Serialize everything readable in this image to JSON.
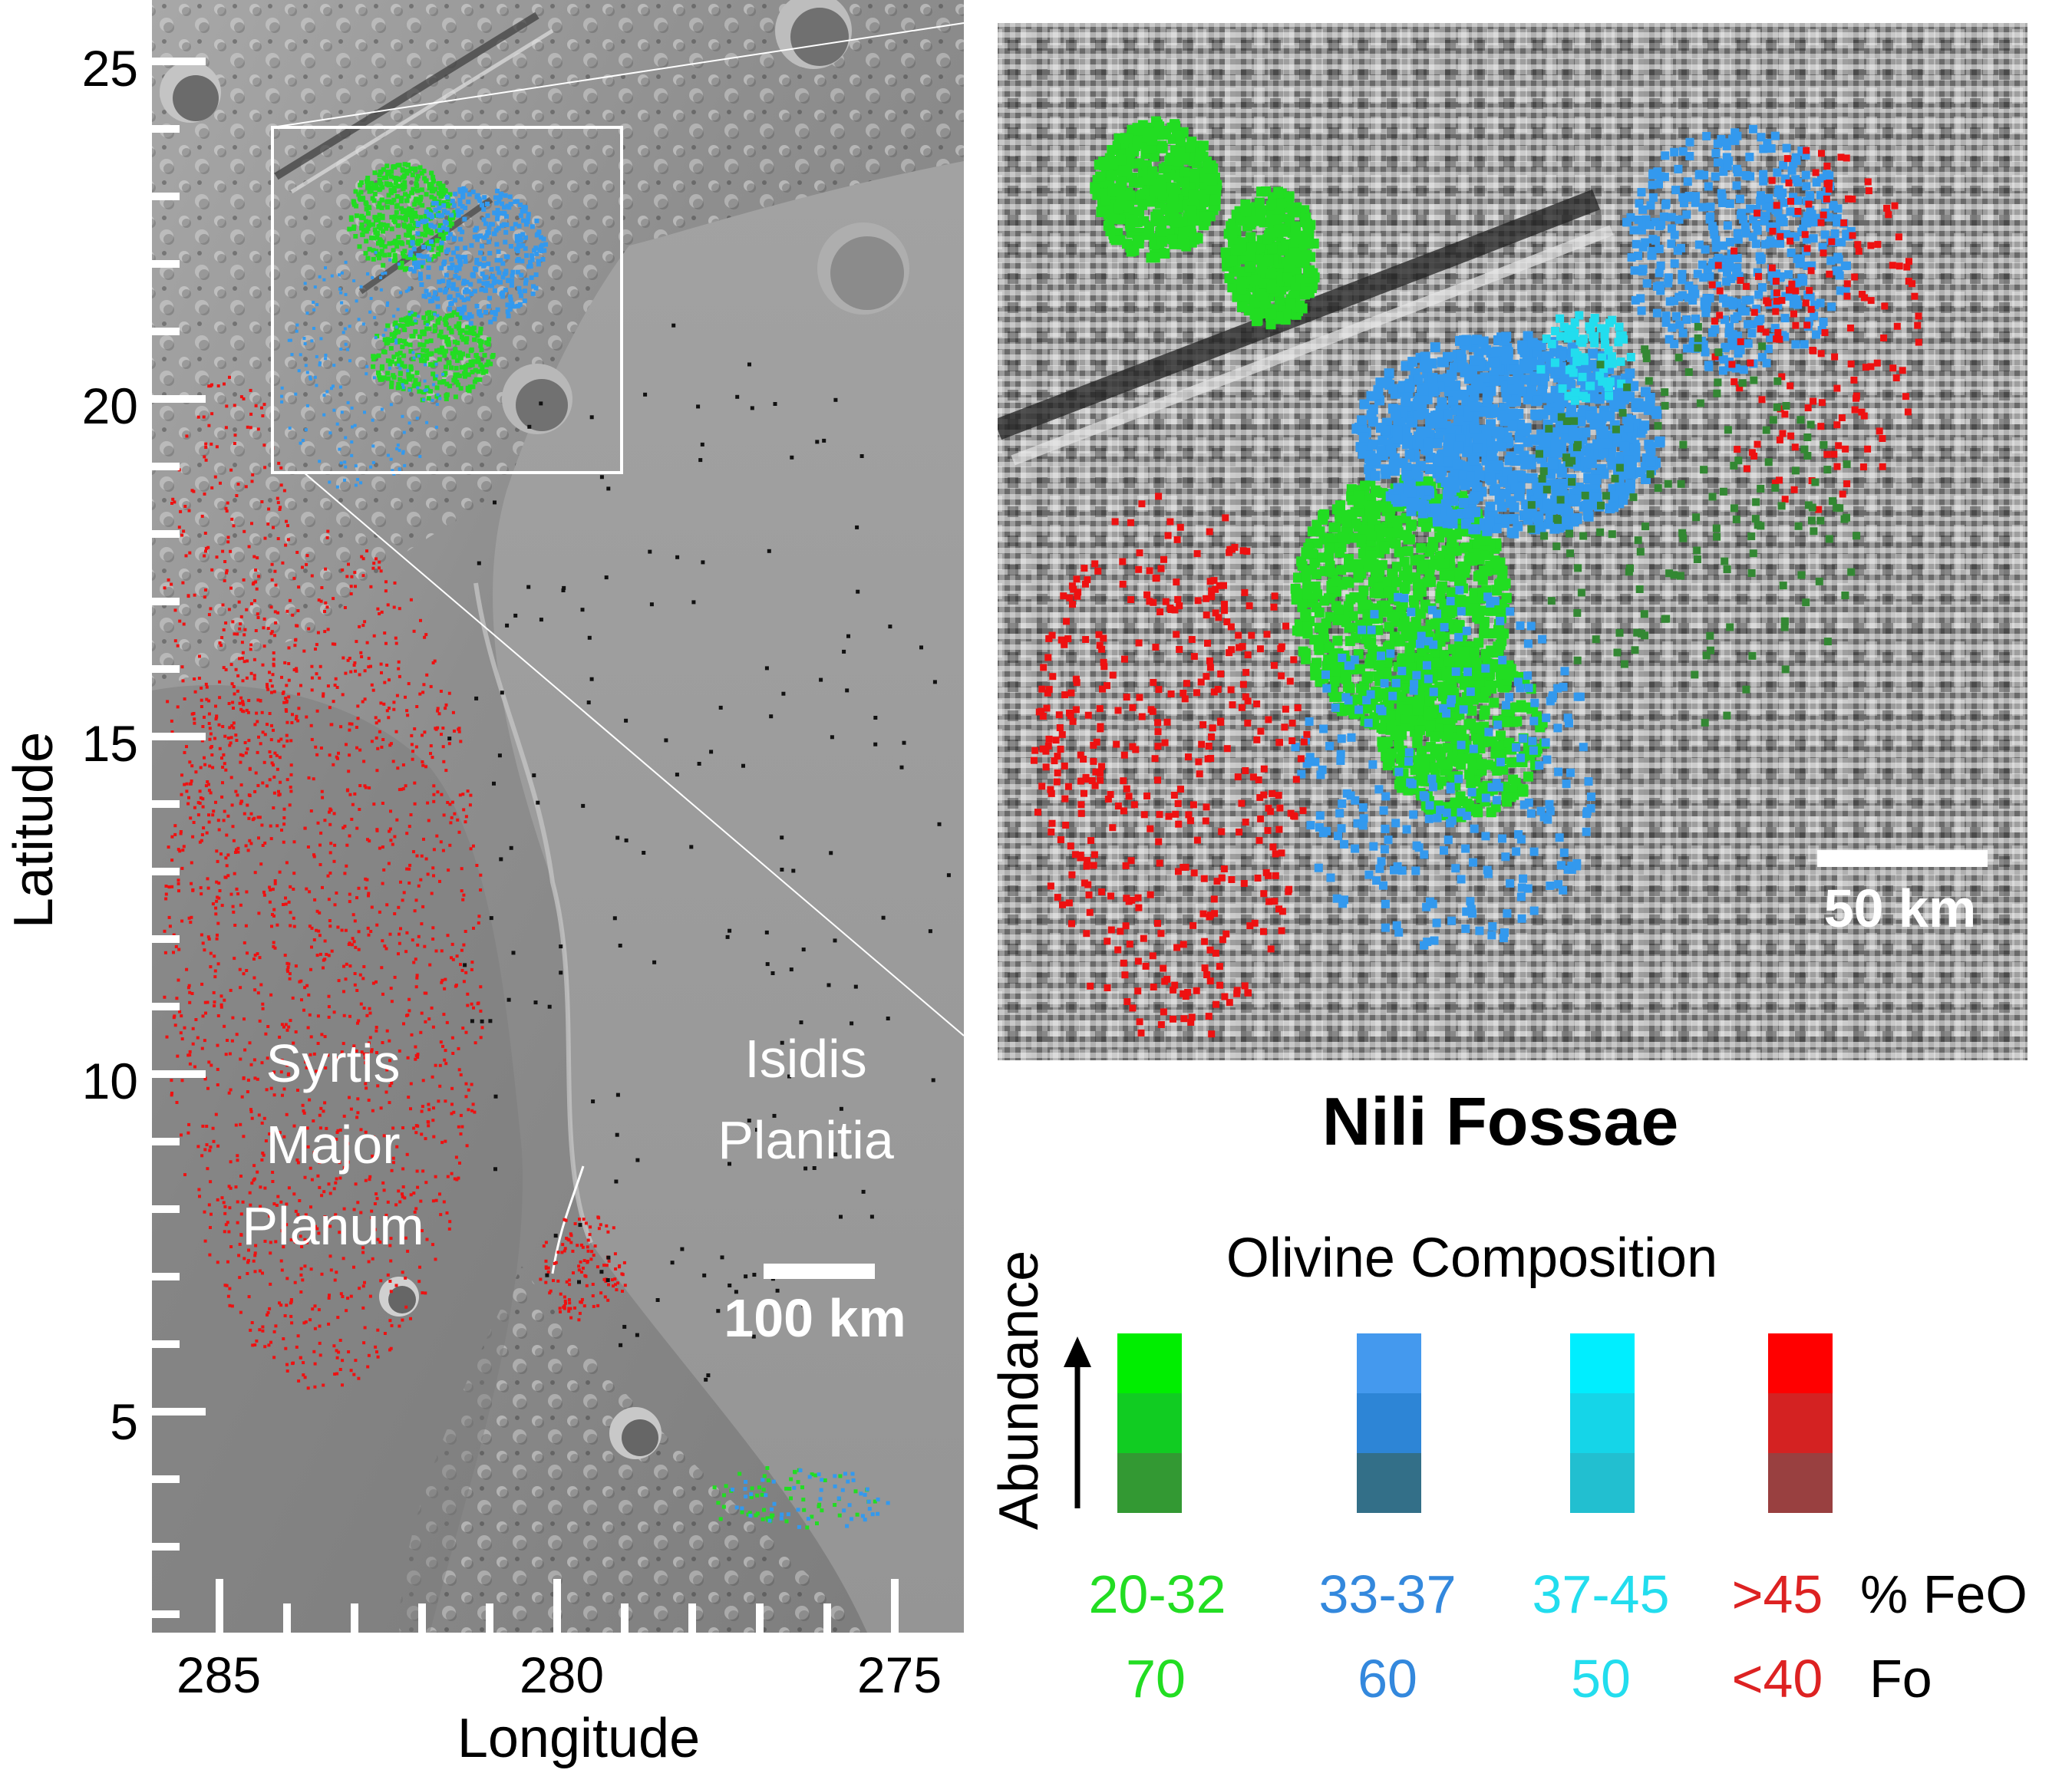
{
  "main_map": {
    "xlabel": "Longitude",
    "ylabel": "Latitude",
    "x_ticks": [
      "285",
      "280",
      "275"
    ],
    "y_ticks": [
      "25",
      "20",
      "15",
      "10",
      "5"
    ],
    "region_labels": {
      "syrtis": [
        "Syrtis",
        "Major",
        "Planum"
      ],
      "isidis": [
        "Isidis",
        "Planitia"
      ]
    },
    "scale_bar_label": "100 km"
  },
  "inset": {
    "title": "Nili Fossae",
    "scale_bar_label": "50 km"
  },
  "legend": {
    "title": "Olivine Composition",
    "abundance_label": "Abundance",
    "feo_unit": "% FeO",
    "fo_unit": "Fo",
    "classes": [
      {
        "feo": "20-32",
        "fo": "70",
        "text_color": "#22dd22",
        "swatches": [
          "#00ee00",
          "#11cc22",
          "#339933"
        ]
      },
      {
        "feo": "33-37",
        "fo": "60",
        "text_color": "#3388dd",
        "swatches": [
          "#4499ee",
          "#2d85d6",
          "#336f88"
        ]
      },
      {
        "feo": "37-45",
        "fo": "50",
        "text_color": "#22ddee",
        "swatches": [
          "#00eeff",
          "#15d5e8",
          "#22bfd0"
        ]
      },
      {
        "feo": ">45",
        "fo": "<40",
        "text_color": "#dd2222",
        "swatches": [
          "#ff0000",
          "#d42222",
          "#994040"
        ]
      }
    ]
  },
  "colors": {
    "olivine_green": "#22dd22",
    "olivine_blue": "#3399ee",
    "olivine_cyan": "#22ddee",
    "olivine_red": "#ee1111"
  }
}
